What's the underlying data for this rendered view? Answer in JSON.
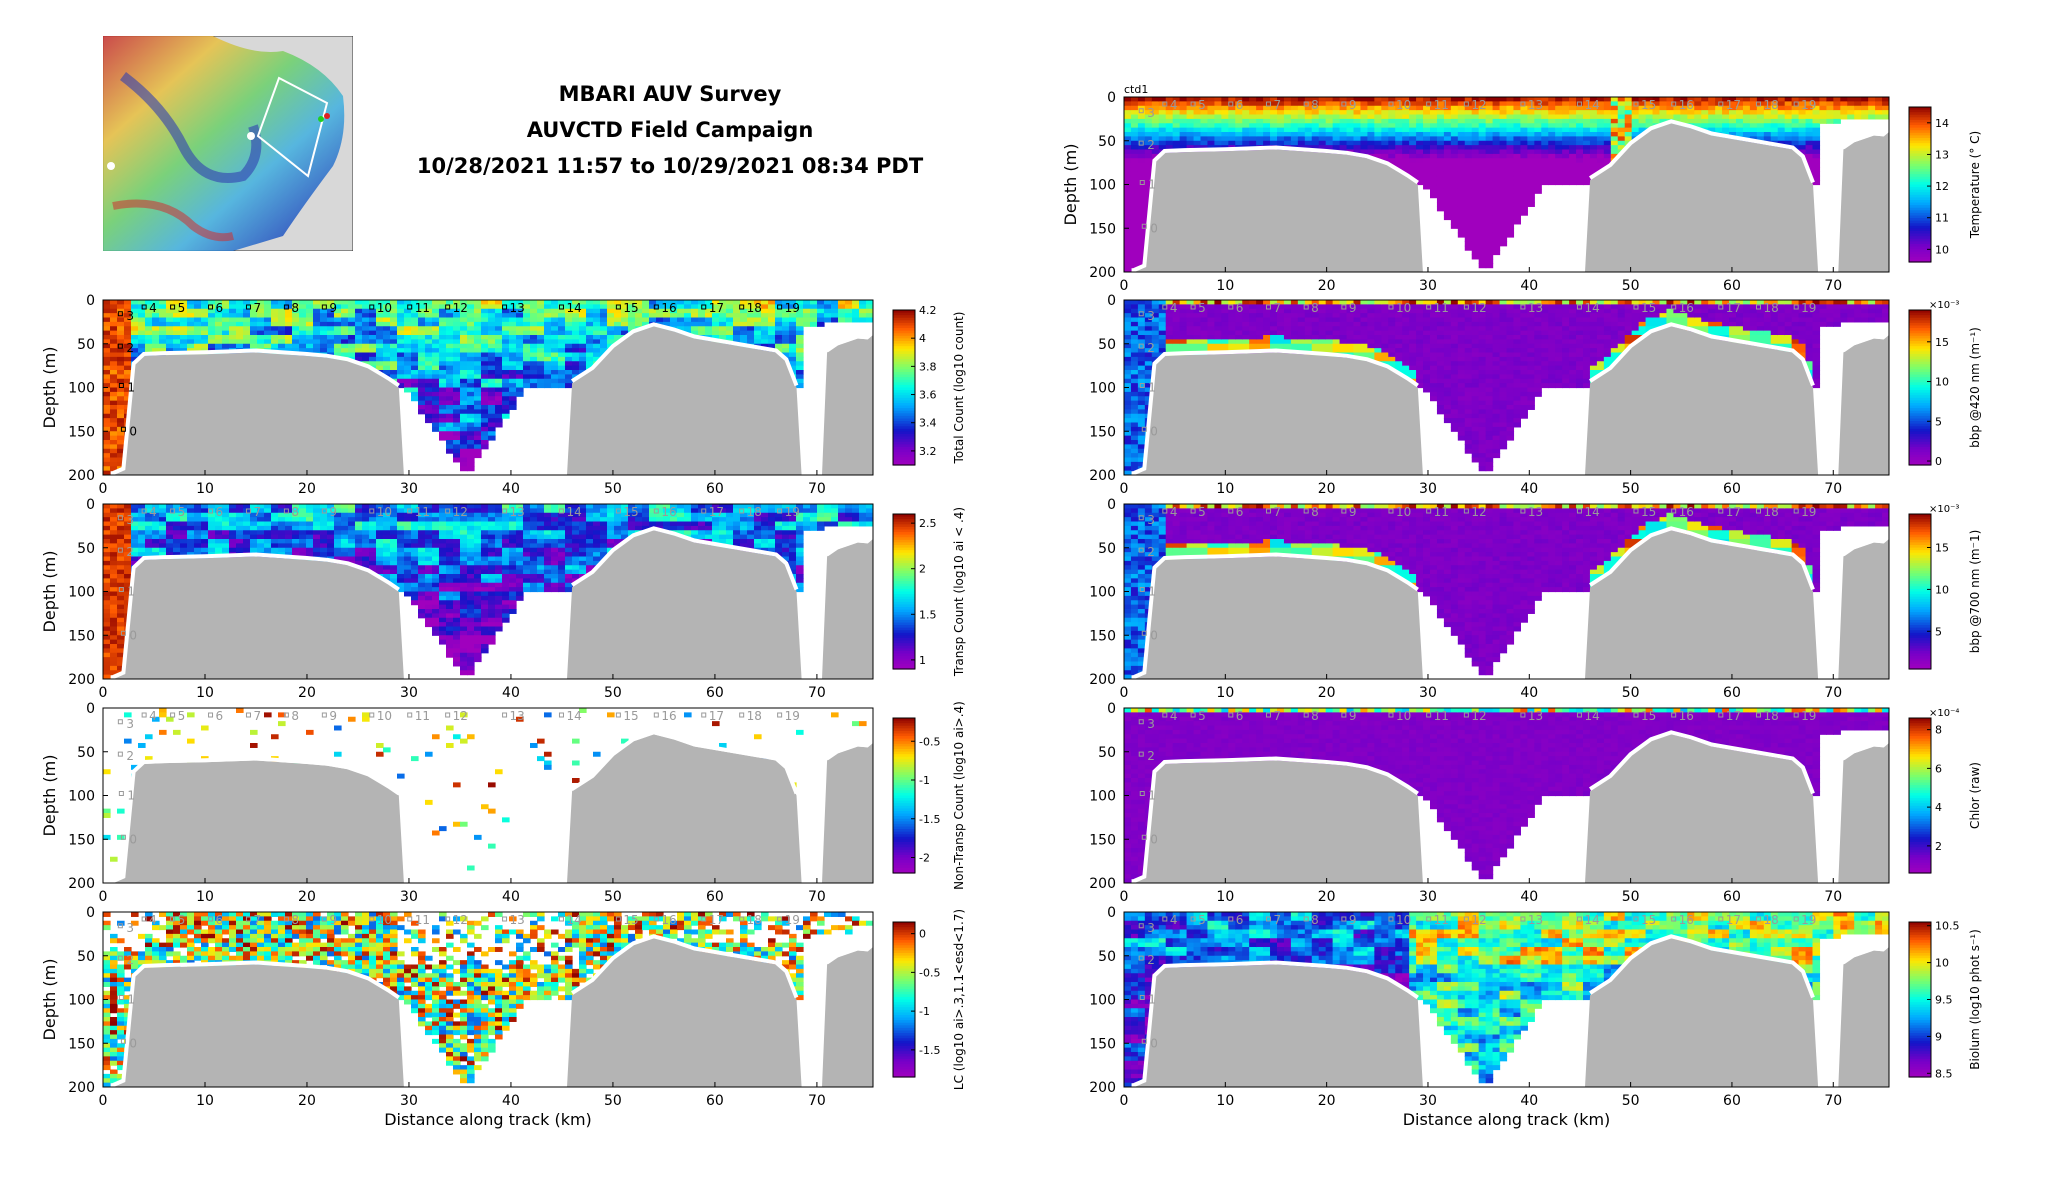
{
  "header": {
    "line1": "MBARI AUV Survey",
    "line2": "AUVCTD Field Campaign",
    "line3": "10/28/2021 11:57 to 10/29/2021 08:34 PDT"
  },
  "colors": {
    "terrain": "#b4b4b4",
    "seafloor_line": "#ffffff",
    "axes": "#000000",
    "station_label_dark": "#000000",
    "station_label_light": "#9a9a9a"
  },
  "chart_data": [
    {
      "id": "total_count",
      "type": "heatmap",
      "column": "left",
      "row": 0,
      "colormap": "jet-magenta",
      "ylabel": "Depth (m)",
      "xlabel": "",
      "cbar_label": "Total Count (log10 count)",
      "cbar_ticks": [
        "4.2",
        "4",
        "3.8",
        "3.6",
        "3.4",
        "3.2"
      ],
      "cbar_range": [
        3.1,
        4.2
      ],
      "stations_style": "dark",
      "stations": [
        "4",
        "5",
        "6",
        "7",
        "8",
        "9",
        "10",
        "11",
        "12",
        "13",
        "14",
        "15",
        "16",
        "17",
        "18",
        "19"
      ],
      "depth_stations": [
        "3",
        "2",
        "1",
        "0"
      ]
    },
    {
      "id": "transp_count",
      "type": "heatmap",
      "column": "left",
      "row": 1,
      "colormap": "jet-magenta",
      "ylabel": "Depth (m)",
      "xlabel": "",
      "cbar_label": "Transp Count (log10 ai < .4)",
      "cbar_ticks": [
        "2.5",
        "2",
        "1.5",
        "1"
      ],
      "cbar_range": [
        0.9,
        2.6
      ],
      "stations_style": "light",
      "stations": [
        "4",
        "5",
        "6",
        "7",
        "8",
        "9",
        "10",
        "11",
        "12",
        "13",
        "14",
        "15",
        "16",
        "17",
        "18",
        "19"
      ],
      "depth_stations": [
        "3",
        "2",
        "1",
        "0"
      ]
    },
    {
      "id": "nontransp_count",
      "type": "heatmap",
      "column": "left",
      "row": 2,
      "colormap": "jet-magenta",
      "ylabel": "Depth (m)",
      "xlabel": "",
      "cbar_label": "Non-Transp Count (log10 ai>.4)",
      "cbar_ticks": [
        "-0.5",
        "-1",
        "-1.5",
        "-2"
      ],
      "cbar_range": [
        -2.2,
        -0.2
      ],
      "stations_style": "light",
      "stations": [
        "4",
        "5",
        "6",
        "7",
        "8",
        "9",
        "10",
        "11",
        "12",
        "13",
        "14",
        "15",
        "16",
        "17",
        "18",
        "19"
      ],
      "depth_stations": [
        "3",
        "2",
        "1",
        "0"
      ]
    },
    {
      "id": "lc",
      "type": "heatmap",
      "column": "left",
      "row": 3,
      "colormap": "jet-magenta",
      "ylabel": "Depth (m)",
      "xlabel": "Distance along track (km)",
      "cbar_label": "LC (log10 ai>.3,1.1<esd<1.7)",
      "cbar_ticks": [
        "0",
        "-0.5",
        "-1",
        "-1.5"
      ],
      "cbar_range": [
        -1.85,
        0.15
      ],
      "stations_style": "light",
      "stations": [
        "4",
        "5",
        "6",
        "7",
        "8",
        "9",
        "10",
        "11",
        "12",
        "13",
        "14",
        "15",
        "16",
        "17",
        "18",
        "19"
      ],
      "depth_stations": [
        "3",
        "2",
        "1",
        "0"
      ]
    },
    {
      "id": "temperature",
      "type": "heatmap",
      "column": "right",
      "row": -1,
      "colormap": "jet-magenta",
      "top_label": "ctd1",
      "ylabel": "Depth (m)",
      "xlabel": "",
      "cbar_label": "Temperature (° C)",
      "cbar_ticks": [
        "14",
        "13",
        "12",
        "11",
        "10"
      ],
      "cbar_range": [
        9.6,
        14.5
      ],
      "stations_style": "light",
      "stations": [
        "4",
        "5",
        "6",
        "7",
        "8",
        "9",
        "10",
        "11",
        "12",
        "13",
        "14",
        "15",
        "16",
        "17",
        "18",
        "19"
      ],
      "depth_stations": [
        "3",
        "2",
        "1",
        "0"
      ]
    },
    {
      "id": "bbp420",
      "type": "heatmap",
      "column": "right",
      "row": 0,
      "colormap": "jet-magenta",
      "ylabel": "",
      "xlabel": "",
      "cbar_label": "bbp @420 nm (m⁻¹)",
      "cbar_exp": "×10⁻³",
      "cbar_ticks": [
        "15",
        "10",
        "5",
        "0"
      ],
      "cbar_range": [
        -0.5,
        19
      ],
      "stations_style": "light",
      "stations": [
        "4",
        "5",
        "6",
        "7",
        "8",
        "9",
        "10",
        "11",
        "12",
        "13",
        "14",
        "15",
        "16",
        "17",
        "18",
        "19"
      ],
      "depth_stations": [
        "3",
        "2",
        "1",
        "0"
      ]
    },
    {
      "id": "bbp700",
      "type": "heatmap",
      "column": "right",
      "row": 1,
      "colormap": "jet-magenta",
      "ylabel": "",
      "xlabel": "",
      "cbar_label": "bbp @700 nm (m⁻1)",
      "cbar_exp": "×10⁻³",
      "cbar_ticks": [
        "15",
        "10",
        "5"
      ],
      "cbar_range": [
        0.5,
        19
      ],
      "stations_style": "light",
      "stations": [
        "4",
        "5",
        "6",
        "7",
        "8",
        "9",
        "10",
        "11",
        "12",
        "13",
        "14",
        "15",
        "16",
        "17",
        "18",
        "19"
      ],
      "depth_stations": [
        "3",
        "2",
        "1",
        "0"
      ]
    },
    {
      "id": "chlor",
      "type": "heatmap",
      "column": "right",
      "row": 2,
      "colormap": "jet-magenta",
      "ylabel": "",
      "xlabel": "",
      "cbar_label": "Chlor (raw)",
      "cbar_exp": "×10⁻⁴",
      "cbar_ticks": [
        "8",
        "6",
        "4",
        "2"
      ],
      "cbar_range": [
        0.6,
        8.6
      ],
      "stations_style": "light",
      "stations": [
        "4",
        "5",
        "6",
        "7",
        "8",
        "9",
        "10",
        "11",
        "12",
        "13",
        "14",
        "15",
        "16",
        "17",
        "18",
        "19"
      ],
      "depth_stations": [
        "3",
        "2",
        "1",
        "0"
      ]
    },
    {
      "id": "biolum",
      "type": "heatmap",
      "column": "right",
      "row": 3,
      "colormap": "jet-magenta",
      "ylabel": "",
      "xlabel": "Distance along track (km)",
      "cbar_label": "Biolum (log10 phot s⁻¹)",
      "cbar_ticks": [
        "10.5",
        "10",
        "9.5",
        "9",
        "8.5"
      ],
      "cbar_range": [
        8.45,
        10.55
      ],
      "stations_style": "light",
      "stations": [
        "4",
        "5",
        "6",
        "7",
        "8",
        "9",
        "10",
        "11",
        "12",
        "13",
        "14",
        "15",
        "16",
        "17",
        "18",
        "19"
      ],
      "depth_stations": [
        "3",
        "2",
        "1",
        "0"
      ]
    }
  ],
  "axes": {
    "xticks": [
      "0",
      "10",
      "20",
      "30",
      "40",
      "50",
      "60",
      "70"
    ],
    "yticks": [
      "0",
      "50",
      "100",
      "150",
      "200"
    ],
    "xlim": [
      0,
      75.5
    ],
    "ylim": [
      0,
      200
    ]
  },
  "bathymetry_km_m": [
    [
      0,
      200
    ],
    [
      1,
      200
    ],
    [
      2,
      195
    ],
    [
      3,
      75
    ],
    [
      4,
      64
    ],
    [
      6,
      63
    ],
    [
      10,
      62
    ],
    [
      15,
      60
    ],
    [
      20,
      64
    ],
    [
      22,
      66
    ],
    [
      24,
      70
    ],
    [
      26,
      78
    ],
    [
      28,
      92
    ],
    [
      29,
      100
    ],
    [
      29.5,
      200
    ]
  ],
  "bathymetry2_km_m": [
    [
      45.5,
      200
    ],
    [
      46,
      95
    ],
    [
      48,
      80
    ],
    [
      50,
      55
    ],
    [
      52,
      38
    ],
    [
      54,
      30
    ],
    [
      56,
      36
    ],
    [
      58,
      44
    ],
    [
      60,
      48
    ],
    [
      62,
      52
    ],
    [
      64,
      56
    ],
    [
      66,
      60
    ],
    [
      67,
      70
    ],
    [
      68,
      100
    ],
    [
      68.5,
      200
    ]
  ],
  "bathymetry3_km_m": [
    [
      70.5,
      200
    ],
    [
      71,
      60
    ],
    [
      72,
      52
    ],
    [
      73,
      48
    ],
    [
      74,
      44
    ],
    [
      75,
      45
    ],
    [
      75.5,
      40
    ]
  ]
}
